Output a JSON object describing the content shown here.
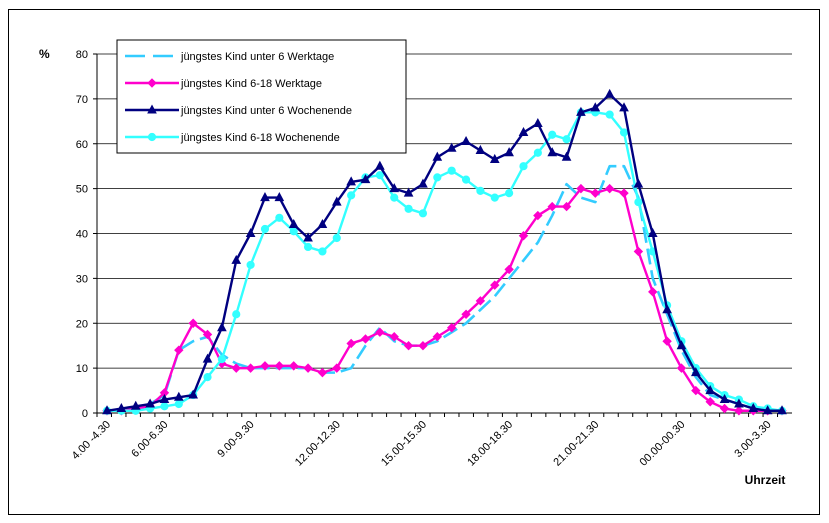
{
  "chart_data": {
    "type": "line",
    "ylabel": "%",
    "xlabel": "Uhrzeit",
    "ylim": [
      0,
      80
    ],
    "yticks": [
      0,
      10,
      20,
      30,
      40,
      50,
      60,
      70,
      80
    ],
    "grid": "horizontal",
    "legend_position": "top-left",
    "x_tick_labels": [
      {
        "index": 0,
        "label": "4.00 -4.30"
      },
      {
        "index": 4,
        "label": "6.00-6.30"
      },
      {
        "index": 10,
        "label": "9.00-9.30"
      },
      {
        "index": 16,
        "label": "12.00-12.30"
      },
      {
        "index": 22,
        "label": "15.00-15.30"
      },
      {
        "index": 28,
        "label": "18.00-18.30"
      },
      {
        "index": 34,
        "label": "21.00-21.30"
      },
      {
        "index": 40,
        "label": "00.00-00.30"
      },
      {
        "index": 46,
        "label": "3.00-3.30"
      }
    ],
    "point_count": 48,
    "series": [
      {
        "name": "jüngstes Kind unter 6 Werktage",
        "color": "#33ccff",
        "style": "dashed",
        "marker": "none",
        "values": [
          0.5,
          0.5,
          1,
          2,
          4,
          14,
          16,
          17,
          13,
          11,
          10,
          10,
          10,
          10,
          10,
          9,
          9,
          10,
          15,
          19,
          16,
          15,
          15,
          16,
          18,
          20,
          23,
          26,
          30,
          34,
          38,
          44,
          51,
          48,
          47,
          55,
          55,
          48,
          30,
          22,
          14,
          8,
          4,
          3,
          2,
          1,
          0.5,
          0.5
        ]
      },
      {
        "name": "jüngstes Kind 6-18 Werktage",
        "color": "#ff00cc",
        "style": "solid",
        "marker": "diamond",
        "values": [
          0.5,
          0.5,
          1,
          1.5,
          4.5,
          14,
          20,
          17.5,
          11,
          10,
          10,
          10.5,
          10.5,
          10.5,
          10,
          9,
          10,
          15.5,
          16.5,
          18,
          17,
          15,
          15,
          17,
          19,
          22,
          25,
          28.5,
          32,
          39.5,
          44,
          46,
          46,
          50,
          49,
          50,
          49,
          36,
          27,
          16,
          10,
          5,
          2.5,
          1,
          0.5,
          0.5,
          0.5,
          0.5
        ]
      },
      {
        "name": "jüngstes Kind unter 6 Wochenende",
        "color": "#000080",
        "style": "solid",
        "marker": "triangle",
        "values": [
          0.5,
          1,
          1.5,
          2,
          3,
          3.5,
          4,
          12,
          19,
          34,
          40,
          48,
          48,
          42,
          39,
          42,
          47,
          51.5,
          52,
          55,
          50,
          49,
          51,
          57,
          59,
          60.5,
          58.5,
          56.5,
          58,
          62.5,
          64.5,
          58,
          57,
          67,
          68,
          71,
          68,
          51,
          40,
          23,
          15,
          9,
          5,
          3,
          2,
          1,
          0.5,
          0.5
        ]
      },
      {
        "name": "jüngstes Kind 6-18 Wochenende",
        "color": "#33ffff",
        "style": "solid",
        "marker": "circle",
        "values": [
          0.5,
          0.5,
          0.5,
          1,
          1.5,
          2,
          4,
          8,
          12,
          22,
          33,
          41,
          43.5,
          40.5,
          37,
          36,
          39,
          48.5,
          52.5,
          53,
          48,
          45.5,
          44.5,
          52.5,
          54,
          52,
          49.5,
          48,
          49,
          55,
          58,
          62,
          61,
          67,
          67,
          66.5,
          62.5,
          47,
          36,
          24,
          16,
          10,
          6,
          4,
          3,
          1.5,
          1,
          0.5
        ]
      }
    ]
  }
}
